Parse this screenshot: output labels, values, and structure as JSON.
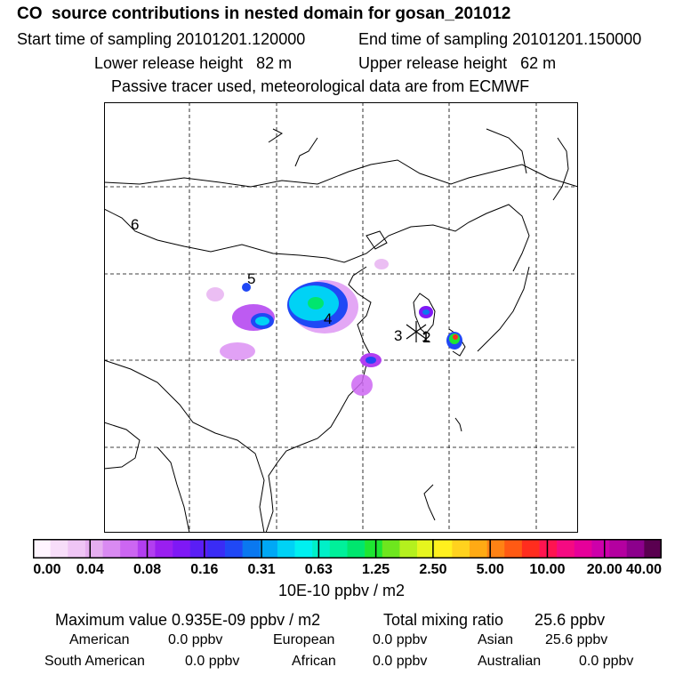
{
  "header": {
    "title": "CO  source contributions in nested domain for gosan_201012",
    "start_time": "Start time of sampling 20101201.120000",
    "end_time": "End time of sampling 20101201.150000",
    "lower_release": "Lower release height   82 m",
    "upper_release": "Upper release height   62 m",
    "tracer_note": "Passive tracer used, meteorological data are from ECMWF"
  },
  "map": {
    "markers": [
      {
        "id": "m1",
        "label": "1"
      },
      {
        "id": "m2",
        "label": "2"
      },
      {
        "id": "m3",
        "label": "3"
      },
      {
        "id": "m4",
        "label": "4"
      },
      {
        "id": "m5",
        "label": "5"
      },
      {
        "id": "m6",
        "label": "6"
      }
    ]
  },
  "colorbar": {
    "ticks": [
      "0.00",
      "0.04",
      "0.08",
      "0.16",
      "0.31",
      "0.63",
      "1.25",
      "2.50",
      "5.00",
      "10.00",
      "20.00",
      "40.00"
    ],
    "colors": [
      "#fff5ff",
      "#f7ddf9",
      "#efc5f5",
      "#e6aef0",
      "#d98af2",
      "#cc66f2",
      "#b23ef0",
      "#9a1ff0",
      "#7f18f5",
      "#5a1ef5",
      "#3a2cf5",
      "#2048f5",
      "#0a78f0",
      "#00a8f5",
      "#00d2f5",
      "#00f0f0",
      "#00f0c8",
      "#00f09a",
      "#00e66e",
      "#1ee632",
      "#6ee61e",
      "#b4f01e",
      "#e6f51e",
      "#fff01e",
      "#ffd21e",
      "#ffaa14",
      "#ff8214",
      "#ff5a14",
      "#ff2d1e",
      "#ff1450",
      "#f50a82",
      "#e6009a",
      "#cd00aa",
      "#b400a0",
      "#8c008c",
      "#5a0050"
    ],
    "units": "10E-10 ppbv / m2"
  },
  "stats": {
    "max_value": "Maximum value  0.935E-09 ppbv / m2",
    "total_mixing": "Total mixing ratio       25.6 ppbv",
    "regions": [
      {
        "name": "American",
        "value": "0.0 ppbv"
      },
      {
        "name": "European",
        "value": "0.0 ppbv"
      },
      {
        "name": "Asian",
        "value": "25.6 ppbv"
      },
      {
        "name": "South American",
        "value": "0.0 ppbv"
      },
      {
        "name": "African",
        "value": "0.0 ppbv"
      },
      {
        "name": "Australian",
        "value": "0.0 ppbv"
      }
    ]
  }
}
